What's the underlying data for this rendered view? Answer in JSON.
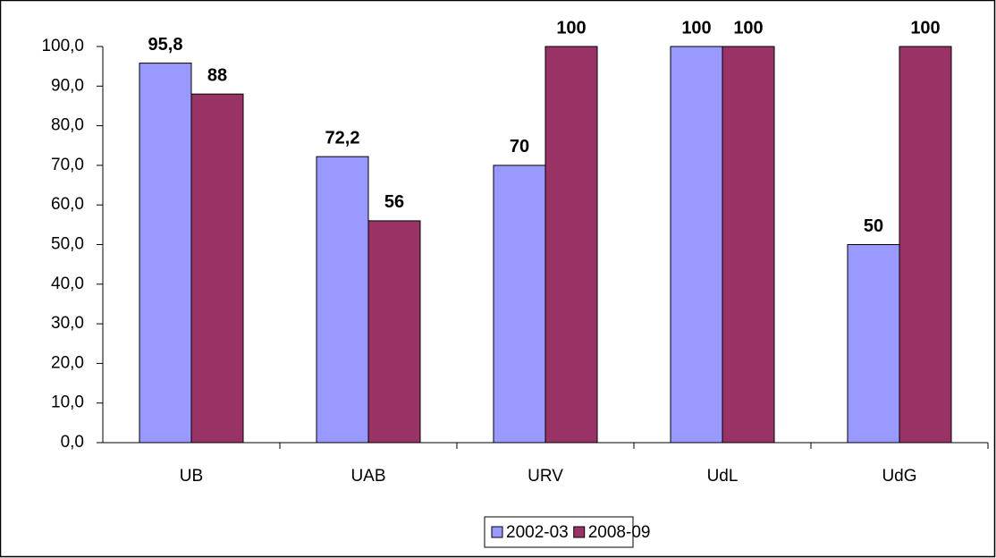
{
  "chart_data": {
    "type": "bar",
    "categories": [
      "UB",
      "UAB",
      "URV",
      "UdL",
      "UdG"
    ],
    "series": [
      {
        "name": "2002-03",
        "color": "#9999ff",
        "values": [
          95.8,
          72.2,
          70,
          100,
          50
        ],
        "value_labels": [
          "95,8",
          "72,2",
          "70",
          "100",
          "50"
        ]
      },
      {
        "name": "2008-09",
        "color": "#993366",
        "values": [
          88,
          56,
          100,
          100,
          100
        ],
        "value_labels": [
          "88",
          "56",
          "100",
          "100",
          "100"
        ]
      }
    ],
    "ylim": [
      0,
      100
    ],
    "yticks": [
      {
        "value": 0,
        "label": "0,0"
      },
      {
        "value": 10,
        "label": "10,0"
      },
      {
        "value": 20,
        "label": "20,0"
      },
      {
        "value": 30,
        "label": "30,0"
      },
      {
        "value": 40,
        "label": "40,0"
      },
      {
        "value": 50,
        "label": "50,0"
      },
      {
        "value": 60,
        "label": "60,0"
      },
      {
        "value": 70,
        "label": "70,0"
      },
      {
        "value": 80,
        "label": "80,0"
      },
      {
        "value": 90,
        "label": "90,0"
      },
      {
        "value": 100,
        "label": "100,0"
      }
    ],
    "legend": "bottom"
  }
}
